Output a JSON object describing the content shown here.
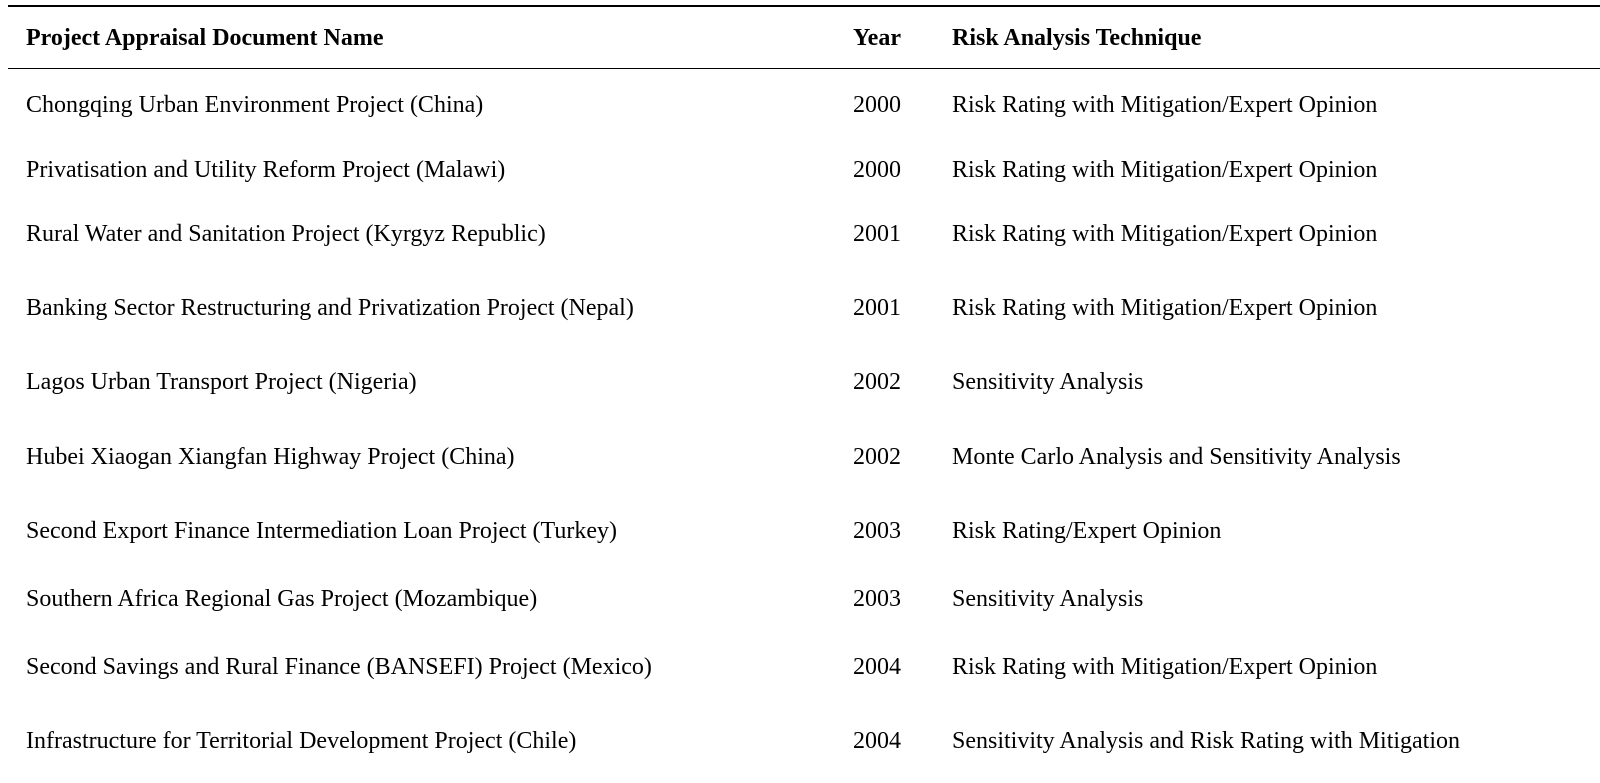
{
  "table": {
    "headers": {
      "name": "Project Appraisal Document Name",
      "year": "Year",
      "technique": "Risk Analysis Technique"
    },
    "rows": [
      {
        "name": "Chongqing Urban Environment Project (China)",
        "year": "2000",
        "technique": "Risk Rating with Mitigation/Expert Opinion"
      },
      {
        "name": "Privatisation and Utility Reform Project (Malawi)",
        "year": "2000",
        "technique": "Risk Rating with Mitigation/Expert Opinion"
      },
      {
        "name": "Rural Water and Sanitation Project (Kyrgyz Republic)",
        "year": "2001",
        "technique": "Risk Rating with Mitigation/Expert Opinion"
      },
      {
        "name": "Banking Sector Restructuring and Privatization Project (Nepal)",
        "year": "2001",
        "technique": "Risk Rating with Mitigation/Expert Opinion"
      },
      {
        "name": "Lagos Urban Transport Project (Nigeria)",
        "year": "2002",
        "technique": "Sensitivity Analysis"
      },
      {
        "name": "Hubei Xiaogan Xiangfan Highway Project (China)",
        "year": "2002",
        "technique": "Monte Carlo Analysis and Sensitivity Analysis"
      },
      {
        "name": "Second Export Finance Intermediation Loan Project (Turkey)",
        "year": "2003",
        "technique": "Risk Rating/Expert Opinion"
      },
      {
        "name": "Southern Africa Regional Gas Project (Mozambique)",
        "year": "2003",
        "technique": "Sensitivity Analysis"
      },
      {
        "name": "Second Savings and Rural Finance (BANSEFI) Project (Mexico)",
        "year": "2004",
        "technique": "Risk Rating with Mitigation/Expert Opinion"
      },
      {
        "name": "Infrastructure for Territorial Development Project (Chile)",
        "year": "2004",
        "technique": "Sensitivity Analysis and Risk Rating with Mitigation"
      }
    ]
  }
}
